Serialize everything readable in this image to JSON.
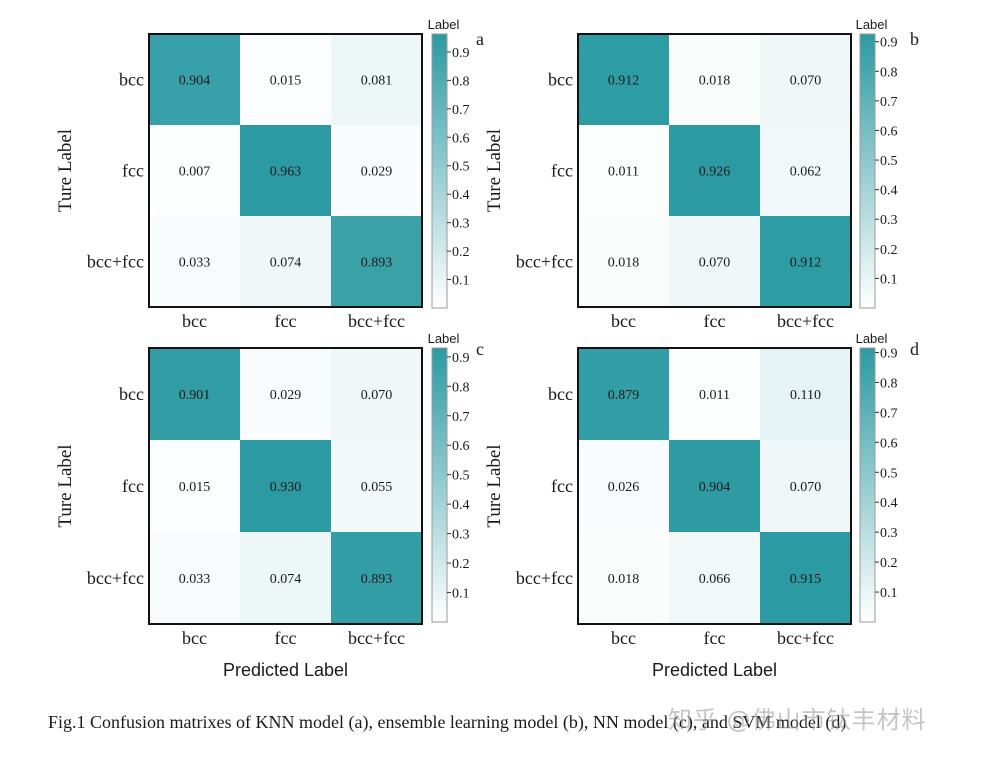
{
  "colors": {
    "low": "#ffffff",
    "high": "#2b9aa2",
    "frame": "#111111",
    "colorbar_frame": "#9a9a9a"
  },
  "shared": {
    "categories": [
      "bcc",
      "fcc",
      "bcc+fcc"
    ],
    "xlabel": "Predicted Label",
    "ylabel": "Ture Label",
    "colorbar_title": "Label",
    "colorbar_ticks": [
      0.1,
      0.2,
      0.3,
      0.4,
      0.5,
      0.6,
      0.7,
      0.8,
      0.9
    ]
  },
  "chart_data": [
    {
      "type": "heatmap",
      "panel_label": "a",
      "x_categories": [
        "bcc",
        "fcc",
        "bcc+fcc"
      ],
      "y_categories": [
        "bcc",
        "fcc",
        "bcc+fcc"
      ],
      "values": [
        [
          0.904,
          0.015,
          0.081
        ],
        [
          0.007,
          0.963,
          0.029
        ],
        [
          0.033,
          0.074,
          0.893
        ]
      ],
      "labels": [
        [
          "0.904",
          "0.015",
          "0.081"
        ],
        [
          "0.007",
          "0.963",
          "0.029"
        ],
        [
          "0.033",
          "0.074",
          "0.893"
        ]
      ],
      "xlabel": "",
      "ylabel": "Ture Label",
      "colorbar_range": [
        0.0,
        0.963
      ]
    },
    {
      "type": "heatmap",
      "panel_label": "b",
      "x_categories": [
        "bcc",
        "fcc",
        "bcc+fcc"
      ],
      "y_categories": [
        "bcc",
        "fcc",
        "bcc+fcc"
      ],
      "values": [
        [
          0.912,
          0.018,
          0.07
        ],
        [
          0.011,
          0.926,
          0.062
        ],
        [
          0.018,
          0.07,
          0.912
        ]
      ],
      "labels": [
        [
          "0.912",
          "0.018",
          "0.070"
        ],
        [
          "0.011",
          "0.926",
          "0.062"
        ],
        [
          "0.018",
          "0.070",
          "0.912"
        ]
      ],
      "xlabel": "",
      "ylabel": "Ture Label",
      "colorbar_range": [
        0.0,
        0.926
      ]
    },
    {
      "type": "heatmap",
      "panel_label": "c",
      "x_categories": [
        "bcc",
        "fcc",
        "bcc+fcc"
      ],
      "y_categories": [
        "bcc",
        "fcc",
        "bcc+fcc"
      ],
      "values": [
        [
          0.901,
          0.029,
          0.07
        ],
        [
          0.015,
          0.93,
          0.055
        ],
        [
          0.033,
          0.074,
          0.893
        ]
      ],
      "labels": [
        [
          "0.901",
          "0.029",
          "0.070"
        ],
        [
          "0.015",
          "0.930",
          "0.055"
        ],
        [
          "0.033",
          "0.074",
          "0.893"
        ]
      ],
      "xlabel": "Predicted Label",
      "ylabel": "Ture Label",
      "colorbar_range": [
        0.0,
        0.93
      ]
    },
    {
      "type": "heatmap",
      "panel_label": "d",
      "x_categories": [
        "bcc",
        "fcc",
        "bcc+fcc"
      ],
      "y_categories": [
        "bcc",
        "fcc",
        "bcc+fcc"
      ],
      "values": [
        [
          0.879,
          0.011,
          0.11
        ],
        [
          0.026,
          0.904,
          0.07
        ],
        [
          0.018,
          0.066,
          0.915
        ]
      ],
      "labels": [
        [
          "0.879",
          "0.011",
          "0.110"
        ],
        [
          "0.026",
          "0.904",
          "0.070"
        ],
        [
          "0.018",
          "0.066",
          "0.915"
        ]
      ],
      "xlabel": "Predicted Label",
      "ylabel": "Ture Label",
      "colorbar_range": [
        0.0,
        0.915
      ]
    }
  ],
  "caption": "Fig.1  Confusion matrixes of KNN model (a), ensemble learning model (b), NN model (c), and SVM model (d)",
  "watermark": "知乎 @佛山市钛丰材料"
}
